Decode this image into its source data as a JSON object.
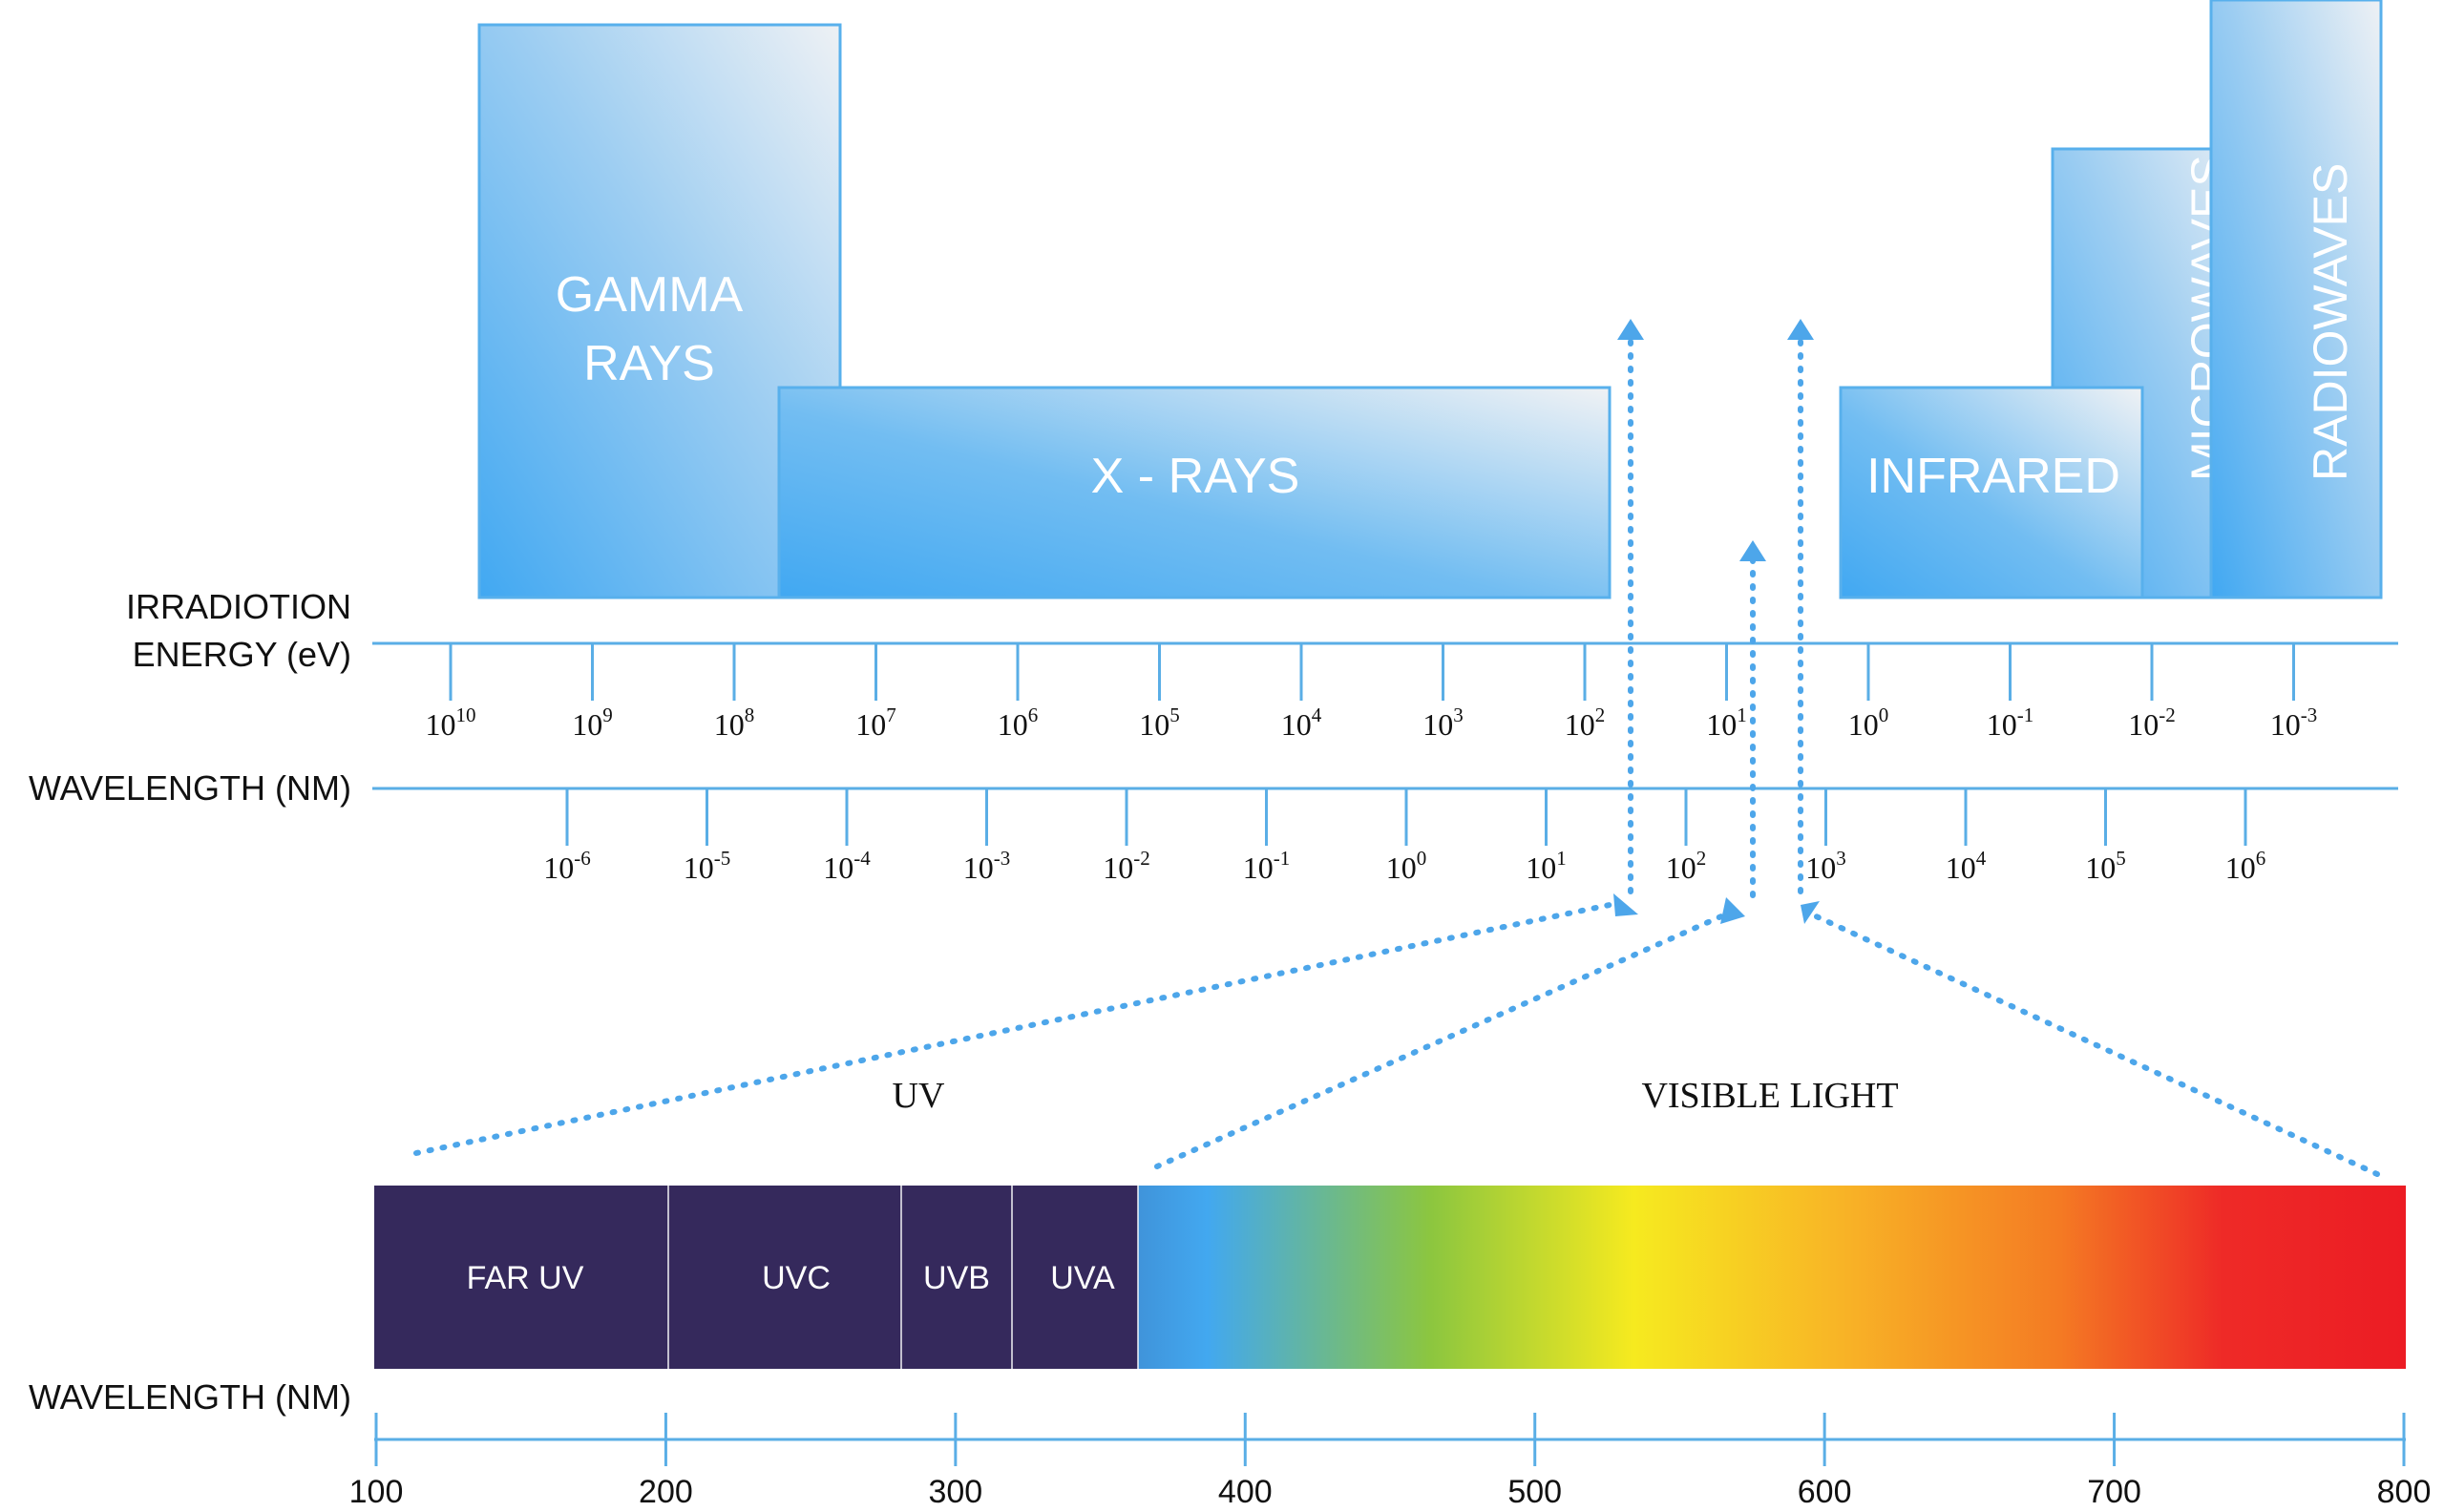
{
  "bands": {
    "gamma": {
      "line1": "GAMMA",
      "line2": "RAYS"
    },
    "xrays": "X - RAYS",
    "infrared": "INFRARED",
    "microwaves": "MICROWAVES",
    "radiowaves": "RADIOWAVES"
  },
  "axes": {
    "energy_title_line1": "IRRADIOTION",
    "energy_title_line2": "ENERGY (eV)",
    "wavelength_title": "WAVELENGTH (NM)",
    "bottom_title": "WAVELENGTH (NM)"
  },
  "energy_ticks": [
    {
      "base": "10",
      "exp": "10"
    },
    {
      "base": "10",
      "exp": "9"
    },
    {
      "base": "10",
      "exp": "8"
    },
    {
      "base": "10",
      "exp": "7"
    },
    {
      "base": "10",
      "exp": "6"
    },
    {
      "base": "10",
      "exp": "5"
    },
    {
      "base": "10",
      "exp": "4"
    },
    {
      "base": "10",
      "exp": "3"
    },
    {
      "base": "10",
      "exp": "2"
    },
    {
      "base": "10",
      "exp": "1"
    },
    {
      "base": "10",
      "exp": "0"
    },
    {
      "base": "10",
      "exp": "-1"
    },
    {
      "base": "10",
      "exp": "-2"
    },
    {
      "base": "10",
      "exp": "-3"
    }
  ],
  "wavelength_ticks": [
    {
      "base": "10",
      "exp": "-6"
    },
    {
      "base": "10",
      "exp": "-5"
    },
    {
      "base": "10",
      "exp": "-4"
    },
    {
      "base": "10",
      "exp": "-3"
    },
    {
      "base": "10",
      "exp": "-2"
    },
    {
      "base": "10",
      "exp": "-1"
    },
    {
      "base": "10",
      "exp": "0"
    },
    {
      "base": "10",
      "exp": "1"
    },
    {
      "base": "10",
      "exp": "2"
    },
    {
      "base": "10",
      "exp": "3"
    },
    {
      "base": "10",
      "exp": "4"
    },
    {
      "base": "10",
      "exp": "5"
    },
    {
      "base": "10",
      "exp": "6"
    }
  ],
  "regions": {
    "uv": "UV",
    "visible": "VISIBLE LIGHT"
  },
  "uv_bands": [
    "FAR UV",
    "UVC",
    "UVB",
    "UVA"
  ],
  "nm_ticks": [
    "100",
    "200",
    "300",
    "400",
    "500",
    "600",
    "700",
    "800"
  ],
  "colors": {
    "axis": "#5aaee6",
    "band_start": "#41a8f2",
    "band_end": "#eef1f4",
    "band_stroke": "#58b0ec",
    "uv_dark": "#35295c",
    "arrow": "#4da6ea"
  }
}
